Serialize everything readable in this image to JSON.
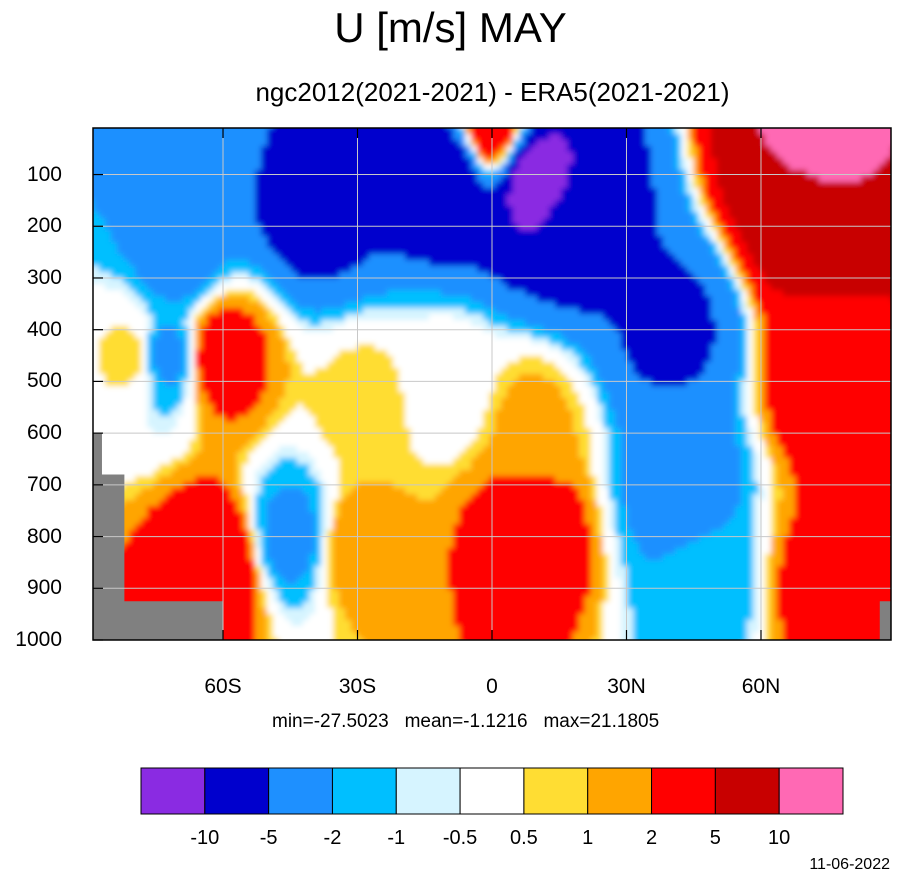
{
  "title": "U [m/s] MAY",
  "subtitle": "ngc2012(2021-2021) - ERA5(2021-2021)",
  "stats": {
    "min_label": "min=-27.5023",
    "mean_label": "mean=-1.1216",
    "max_label": "max=21.1805"
  },
  "date": "11-06-2022",
  "chart_data": {
    "type": "heatmap",
    "variable": "U [m/s]",
    "x_axis": {
      "range": [
        -89,
        89
      ],
      "ticks": [
        -60,
        -30,
        0,
        30,
        60
      ],
      "tick_labels": [
        "60S",
        "30S",
        "0",
        "30N",
        "60N"
      ]
    },
    "y_axis": {
      "range": [
        1000,
        10
      ],
      "ticks": [
        100,
        200,
        300,
        400,
        500,
        600,
        700,
        800,
        900,
        1000
      ],
      "tick_labels": [
        "100",
        "200",
        "300",
        "400",
        "500",
        "600",
        "700",
        "800",
        "900",
        "1000"
      ],
      "reversed": true
    },
    "grid": true,
    "levels": [
      -10,
      -5,
      -2,
      -1,
      -0.5,
      0.5,
      1,
      2,
      5,
      10
    ],
    "level_labels": [
      "-10",
      "-5",
      "-2",
      "-1",
      "-0.5",
      "0.5",
      "1",
      "2",
      "5",
      "10"
    ],
    "colors": [
      "#8a2be2",
      "#0000cd",
      "#1e90ff",
      "#00bfff",
      "#d6f4ff",
      "#ffffff",
      "#ffdd33",
      "#ffa500",
      "#ff0000",
      "#c80000",
      "#ff69b4"
    ],
    "missing_color": "#808080",
    "min": -27.5023,
    "mean": -1.1216,
    "max": 21.1805,
    "features": [
      {
        "lat": 72,
        "p": 60,
        "value": 12,
        "note": "pink maximum"
      },
      {
        "lat": 70,
        "p": 150,
        "value": 7
      },
      {
        "lat": 75,
        "p": 500,
        "value": 3.5
      },
      {
        "lat": 75,
        "p": 900,
        "value": 3
      },
      {
        "lat": -40,
        "p": 140,
        "value": -7
      },
      {
        "lat": -10,
        "p": 100,
        "value": -8
      },
      {
        "lat": 10,
        "p": 110,
        "value": -12,
        "note": "purple minimum"
      },
      {
        "lat": 20,
        "p": 200,
        "value": -6
      },
      {
        "lat": 40,
        "p": 400,
        "value": -5.5
      },
      {
        "lat": 42,
        "p": 700,
        "value": -3
      },
      {
        "lat": 48,
        "p": 900,
        "value": -1.5
      },
      {
        "lat": -45,
        "p": 800,
        "value": -2.5
      },
      {
        "lat": -70,
        "p": 250,
        "value": -3
      },
      {
        "lat": -73,
        "p": 450,
        "value": -2.5
      },
      {
        "lat": -61,
        "p": 450,
        "value": 3
      },
      {
        "lat": -61,
        "p": 850,
        "value": 4
      },
      {
        "lat": -80,
        "p": 450,
        "value": 0.8
      },
      {
        "lat": -30,
        "p": 820,
        "value": 1.6
      },
      {
        "lat": -28,
        "p": 550,
        "value": 0.8
      },
      {
        "lat": -10,
        "p": 500,
        "value": 0.0
      },
      {
        "lat": 8,
        "p": 800,
        "value": 3.5
      },
      {
        "lat": 9,
        "p": 580,
        "value": 1.2
      },
      {
        "lat": -65,
        "p": 15,
        "value": -3
      },
      {
        "lat": 0,
        "p": 15,
        "value": 3
      }
    ]
  }
}
